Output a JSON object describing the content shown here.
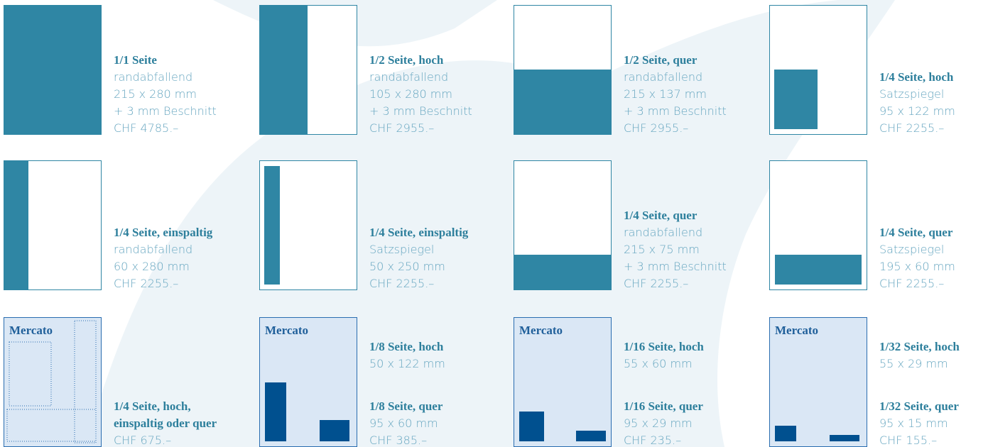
{
  "items": [
    {
      "blocks": [
        {
          "heading": [
            "1/1 Seite"
          ],
          "lines": [
            "randabfallend",
            "215 x 280 mm",
            "+ 3 mm Beschnitt",
            "CHF 4785.–"
          ]
        }
      ]
    },
    {
      "blocks": [
        {
          "heading": [
            "1/2 Seite, hoch"
          ],
          "lines": [
            "randabfallend",
            "105 x 280 mm",
            "+ 3 mm Beschnitt",
            "CHF 2955.–"
          ]
        }
      ]
    },
    {
      "blocks": [
        {
          "heading": [
            "1/2 Seite, quer"
          ],
          "lines": [
            "randabfallend",
            "215 x 137 mm",
            "+ 3 mm Beschnitt",
            "CHF 2955.–"
          ]
        }
      ]
    },
    {
      "blocks": [
        {
          "heading": [
            "1/4 Seite, hoch"
          ],
          "lines": [
            "Satzspiegel",
            "95 x 122 mm",
            "CHF 2255.–"
          ]
        }
      ]
    },
    {
      "blocks": [
        {
          "heading": [
            "1/4 Seite, einspaltig"
          ],
          "lines": [
            "randabfallend",
            "60 x 280 mm",
            "CHF 2255.–"
          ]
        }
      ]
    },
    {
      "blocks": [
        {
          "heading": [
            "1/4 Seite, einspaltig"
          ],
          "lines": [
            "Satzspiegel",
            "50 x 250 mm",
            "CHF 2255.–"
          ]
        }
      ]
    },
    {
      "blocks": [
        {
          "heading": [
            "1/4 Seite, quer"
          ],
          "lines": [
            "randabfallend",
            "215 x 75 mm",
            "+ 3 mm Beschnitt",
            "CHF 2255.–"
          ]
        }
      ]
    },
    {
      "blocks": [
        {
          "heading": [
            "1/4 Seite, quer"
          ],
          "lines": [
            "Satzspiegel",
            "195 x 60 mm",
            "CHF 2255.–"
          ]
        }
      ]
    },
    {
      "thumb_label": "Mercato",
      "blocks": [
        {
          "heading": [
            "1/4 Seite, hoch,",
            "einspaltig oder quer"
          ],
          "lines": [
            "CHF 675.–"
          ]
        }
      ]
    },
    {
      "thumb_label": "Mercato",
      "blocks": [
        {
          "heading": [
            "1/8 Seite, hoch"
          ],
          "lines": [
            "50 x 122 mm"
          ]
        },
        {
          "heading": [
            "1/8 Seite, quer"
          ],
          "lines": [
            "95 x 60 mm",
            "CHF 385.–"
          ]
        }
      ]
    },
    {
      "thumb_label": "Mercato",
      "blocks": [
        {
          "heading": [
            "1/16 Seite, hoch"
          ],
          "lines": [
            "55 x 60 mm"
          ]
        },
        {
          "heading": [
            "1/16 Seite, quer"
          ],
          "lines": [
            "95 x 29 mm",
            "CHF 235.–"
          ]
        }
      ]
    },
    {
      "thumb_label": "Mercato",
      "blocks": [
        {
          "heading": [
            "1/32 Seite, hoch"
          ],
          "lines": [
            "55 x 29 mm"
          ]
        },
        {
          "heading": [
            "1/32 Seite, quer"
          ],
          "lines": [
            "95 x 15 mm",
            "CHF 155.–"
          ]
        }
      ]
    }
  ]
}
